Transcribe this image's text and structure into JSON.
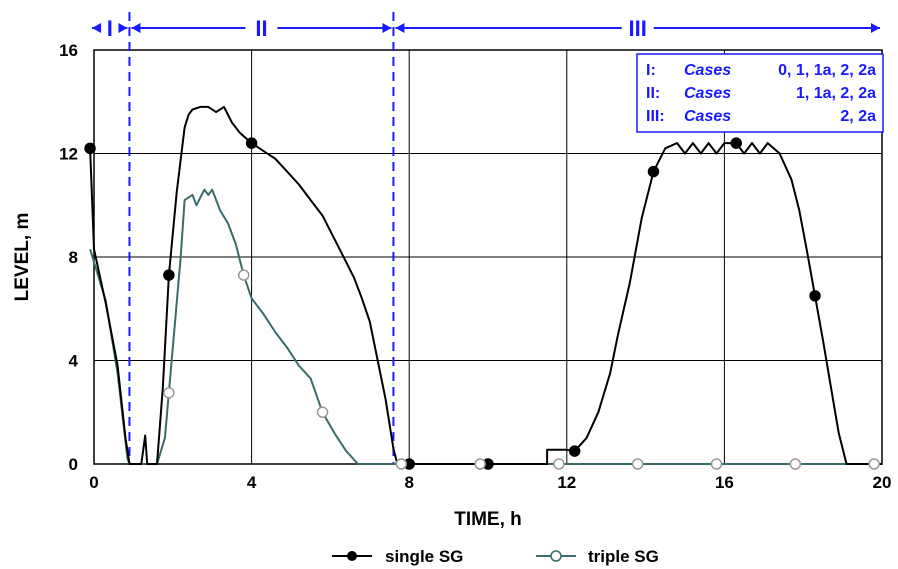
{
  "chart_data": {
    "type": "line",
    "xlabel": "TIME, h",
    "ylabel": "LEVEL, m",
    "xlim": [
      0,
      20
    ],
    "ylim": [
      0,
      16
    ],
    "x_ticks": [
      "0",
      "4",
      "8",
      "12",
      "16",
      "20"
    ],
    "y_ticks": [
      "0",
      "4",
      "8",
      "12",
      "16"
    ],
    "grid": true,
    "legend_position": "bottom",
    "regions": [
      {
        "label": "I",
        "x_start": -0.1,
        "x_end": 0.9
      },
      {
        "label": "II",
        "x_start": 0.9,
        "x_end": 7.6
      },
      {
        "label": "III",
        "x_start": 7.6,
        "x_end": 20
      }
    ],
    "annotation_box": {
      "lines": [
        {
          "prefix": "I:",
          "word": "Cases",
          "cases": "0, 1, 1a, 2, 2a"
        },
        {
          "prefix": "II:",
          "word": "Cases",
          "cases": "1, 1a, 2, 2a"
        },
        {
          "prefix": "III:",
          "word": "Cases",
          "cases": "2, 2a"
        }
      ]
    },
    "series": [
      {
        "name": "single SG",
        "color": "#000000",
        "marker": "filled-circle",
        "points": [
          [
            -0.1,
            12.2
          ],
          [
            0.0,
            8.3
          ],
          [
            0.3,
            6.2
          ],
          [
            0.6,
            3.8
          ],
          [
            0.8,
            1.0
          ],
          [
            0.9,
            0.0
          ],
          [
            1.2,
            0.0
          ],
          [
            1.3,
            1.1
          ],
          [
            1.35,
            0.0
          ],
          [
            1.6,
            0.0
          ],
          [
            1.75,
            3.0
          ],
          [
            1.9,
            7.3
          ],
          [
            2.1,
            10.5
          ],
          [
            2.3,
            13.0
          ],
          [
            2.4,
            13.5
          ],
          [
            2.5,
            13.7
          ],
          [
            2.7,
            13.8
          ],
          [
            2.9,
            13.8
          ],
          [
            3.1,
            13.6
          ],
          [
            3.3,
            13.8
          ],
          [
            3.5,
            13.2
          ],
          [
            3.7,
            12.8
          ],
          [
            4.0,
            12.4
          ],
          [
            4.3,
            12.1
          ],
          [
            4.6,
            11.8
          ],
          [
            4.9,
            11.3
          ],
          [
            5.2,
            10.8
          ],
          [
            5.5,
            10.2
          ],
          [
            5.8,
            9.6
          ],
          [
            6.0,
            9.0
          ],
          [
            6.2,
            8.4
          ],
          [
            6.4,
            7.8
          ],
          [
            6.6,
            7.2
          ],
          [
            6.8,
            6.4
          ],
          [
            7.0,
            5.5
          ],
          [
            7.2,
            4.0
          ],
          [
            7.4,
            2.5
          ],
          [
            7.6,
            0.6
          ],
          [
            7.7,
            0.0
          ],
          [
            8.0,
            0.0
          ],
          [
            10.0,
            0.0
          ],
          [
            11.5,
            0.0
          ],
          [
            11.5,
            0.55
          ],
          [
            12.0,
            0.55
          ],
          [
            12.2,
            0.5
          ],
          [
            12.5,
            1.0
          ],
          [
            12.8,
            2.0
          ],
          [
            13.1,
            3.5
          ],
          [
            13.3,
            5.0
          ],
          [
            13.6,
            7.0
          ],
          [
            13.9,
            9.5
          ],
          [
            14.2,
            11.3
          ],
          [
            14.5,
            12.2
          ],
          [
            14.8,
            12.4
          ],
          [
            15.0,
            12.0
          ],
          [
            15.2,
            12.4
          ],
          [
            15.4,
            12.0
          ],
          [
            15.6,
            12.4
          ],
          [
            15.8,
            12.0
          ],
          [
            16.0,
            12.4
          ],
          [
            16.3,
            12.4
          ],
          [
            16.5,
            12.0
          ],
          [
            16.7,
            12.4
          ],
          [
            16.9,
            12.0
          ],
          [
            17.1,
            12.4
          ],
          [
            17.4,
            12.0
          ],
          [
            17.7,
            11.0
          ],
          [
            17.9,
            9.8
          ],
          [
            18.1,
            8.2
          ],
          [
            18.3,
            6.5
          ],
          [
            18.5,
            4.8
          ],
          [
            18.7,
            3.0
          ],
          [
            18.9,
            1.2
          ],
          [
            19.1,
            0.0
          ],
          [
            19.5,
            0.0
          ],
          [
            20.0,
            0.0
          ]
        ],
        "markers_x": [
          -0.1,
          1.9,
          4.0,
          8.0,
          10.0,
          12.2,
          14.2,
          16.3,
          18.3
        ]
      },
      {
        "name": "triple SG",
        "color": "#3a6b6b",
        "marker": "open-circle",
        "points": [
          [
            -0.1,
            8.3
          ],
          [
            0.3,
            6.3
          ],
          [
            0.6,
            3.5
          ],
          [
            0.85,
            0.2
          ],
          [
            0.9,
            0.0
          ],
          [
            1.6,
            0.0
          ],
          [
            1.8,
            1.0
          ],
          [
            2.0,
            4.5
          ],
          [
            2.2,
            8.0
          ],
          [
            2.3,
            10.2
          ],
          [
            2.5,
            10.4
          ],
          [
            2.6,
            10.0
          ],
          [
            2.8,
            10.6
          ],
          [
            2.9,
            10.4
          ],
          [
            3.0,
            10.6
          ],
          [
            3.2,
            9.8
          ],
          [
            3.4,
            9.3
          ],
          [
            3.6,
            8.5
          ],
          [
            3.8,
            7.3
          ],
          [
            4.0,
            6.4
          ],
          [
            4.3,
            5.8
          ],
          [
            4.6,
            5.1
          ],
          [
            4.9,
            4.5
          ],
          [
            5.2,
            3.8
          ],
          [
            5.5,
            3.3
          ],
          [
            5.8,
            2.0
          ],
          [
            6.1,
            1.2
          ],
          [
            6.4,
            0.5
          ],
          [
            6.7,
            0.0
          ],
          [
            7.8,
            0.0
          ],
          [
            9.8,
            0.0
          ],
          [
            11.8,
            0.0
          ],
          [
            13.8,
            0.0
          ],
          [
            15.8,
            0.0
          ],
          [
            17.8,
            0.0
          ],
          [
            19.8,
            0.0
          ],
          [
            20.0,
            0.0
          ]
        ],
        "markers_x": [
          1.9,
          3.8,
          5.8,
          7.8,
          9.8,
          11.8,
          13.8,
          15.8,
          17.8,
          19.8
        ]
      }
    ]
  },
  "legend": {
    "single_label": "single SG",
    "triple_label": "triple SG"
  }
}
